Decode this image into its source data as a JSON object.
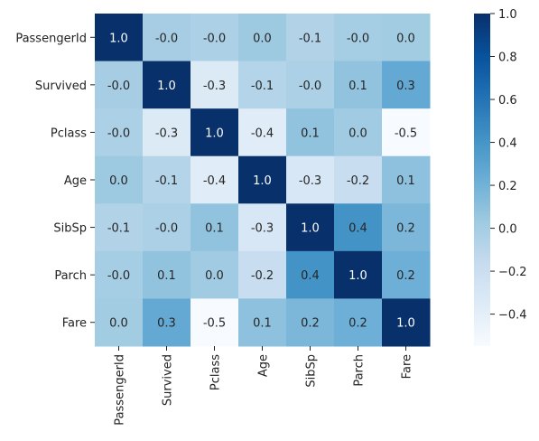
{
  "chart_data": {
    "type": "heatmap",
    "title": "",
    "xlabel": "",
    "ylabel": "",
    "row_labels": [
      "PassengerId",
      "Survived",
      "Pclass",
      "Age",
      "SibSp",
      "Parch",
      "Fare"
    ],
    "col_labels": [
      "PassengerId",
      "Survived",
      "Pclass",
      "Age",
      "SibSp",
      "Parch",
      "Fare"
    ],
    "values": [
      [
        1.0,
        -0.005,
        -0.035,
        0.037,
        -0.058,
        -0.002,
        0.013
      ],
      [
        -0.005,
        1.0,
        -0.338,
        -0.077,
        -0.035,
        0.082,
        0.257
      ],
      [
        -0.035,
        -0.338,
        1.0,
        -0.369,
        0.083,
        0.018,
        -0.549
      ],
      [
        0.037,
        -0.077,
        -0.369,
        1.0,
        -0.308,
        -0.189,
        0.096
      ],
      [
        -0.058,
        -0.035,
        0.083,
        -0.308,
        1.0,
        0.415,
        0.16
      ],
      [
        -0.002,
        0.082,
        0.018,
        -0.189,
        0.415,
        1.0,
        0.216
      ],
      [
        0.013,
        0.257,
        -0.549,
        0.096,
        0.16,
        0.216,
        1.0
      ]
    ],
    "annotation_format": "1 decimal",
    "colormap": "Blues",
    "colormap_stops": [
      "#f7fbff",
      "#deebf7",
      "#c6dbef",
      "#9ecae1",
      "#6baed6",
      "#4292c6",
      "#2171b5",
      "#08519c",
      "#08306b"
    ],
    "vmin": -0.549,
    "vmax": 1.0,
    "colorbar_ticks": [
      1.0,
      0.8,
      0.6,
      0.4,
      0.2,
      0.0,
      -0.2,
      -0.4
    ],
    "colorbar_tick_labels": [
      "1.0",
      "0.8",
      "0.6",
      "0.4",
      "0.2",
      "0.0",
      "−0.2",
      "−0.4"
    ],
    "annotation_colors": {
      "light": "#ffffff",
      "dark": "#262626"
    }
  }
}
